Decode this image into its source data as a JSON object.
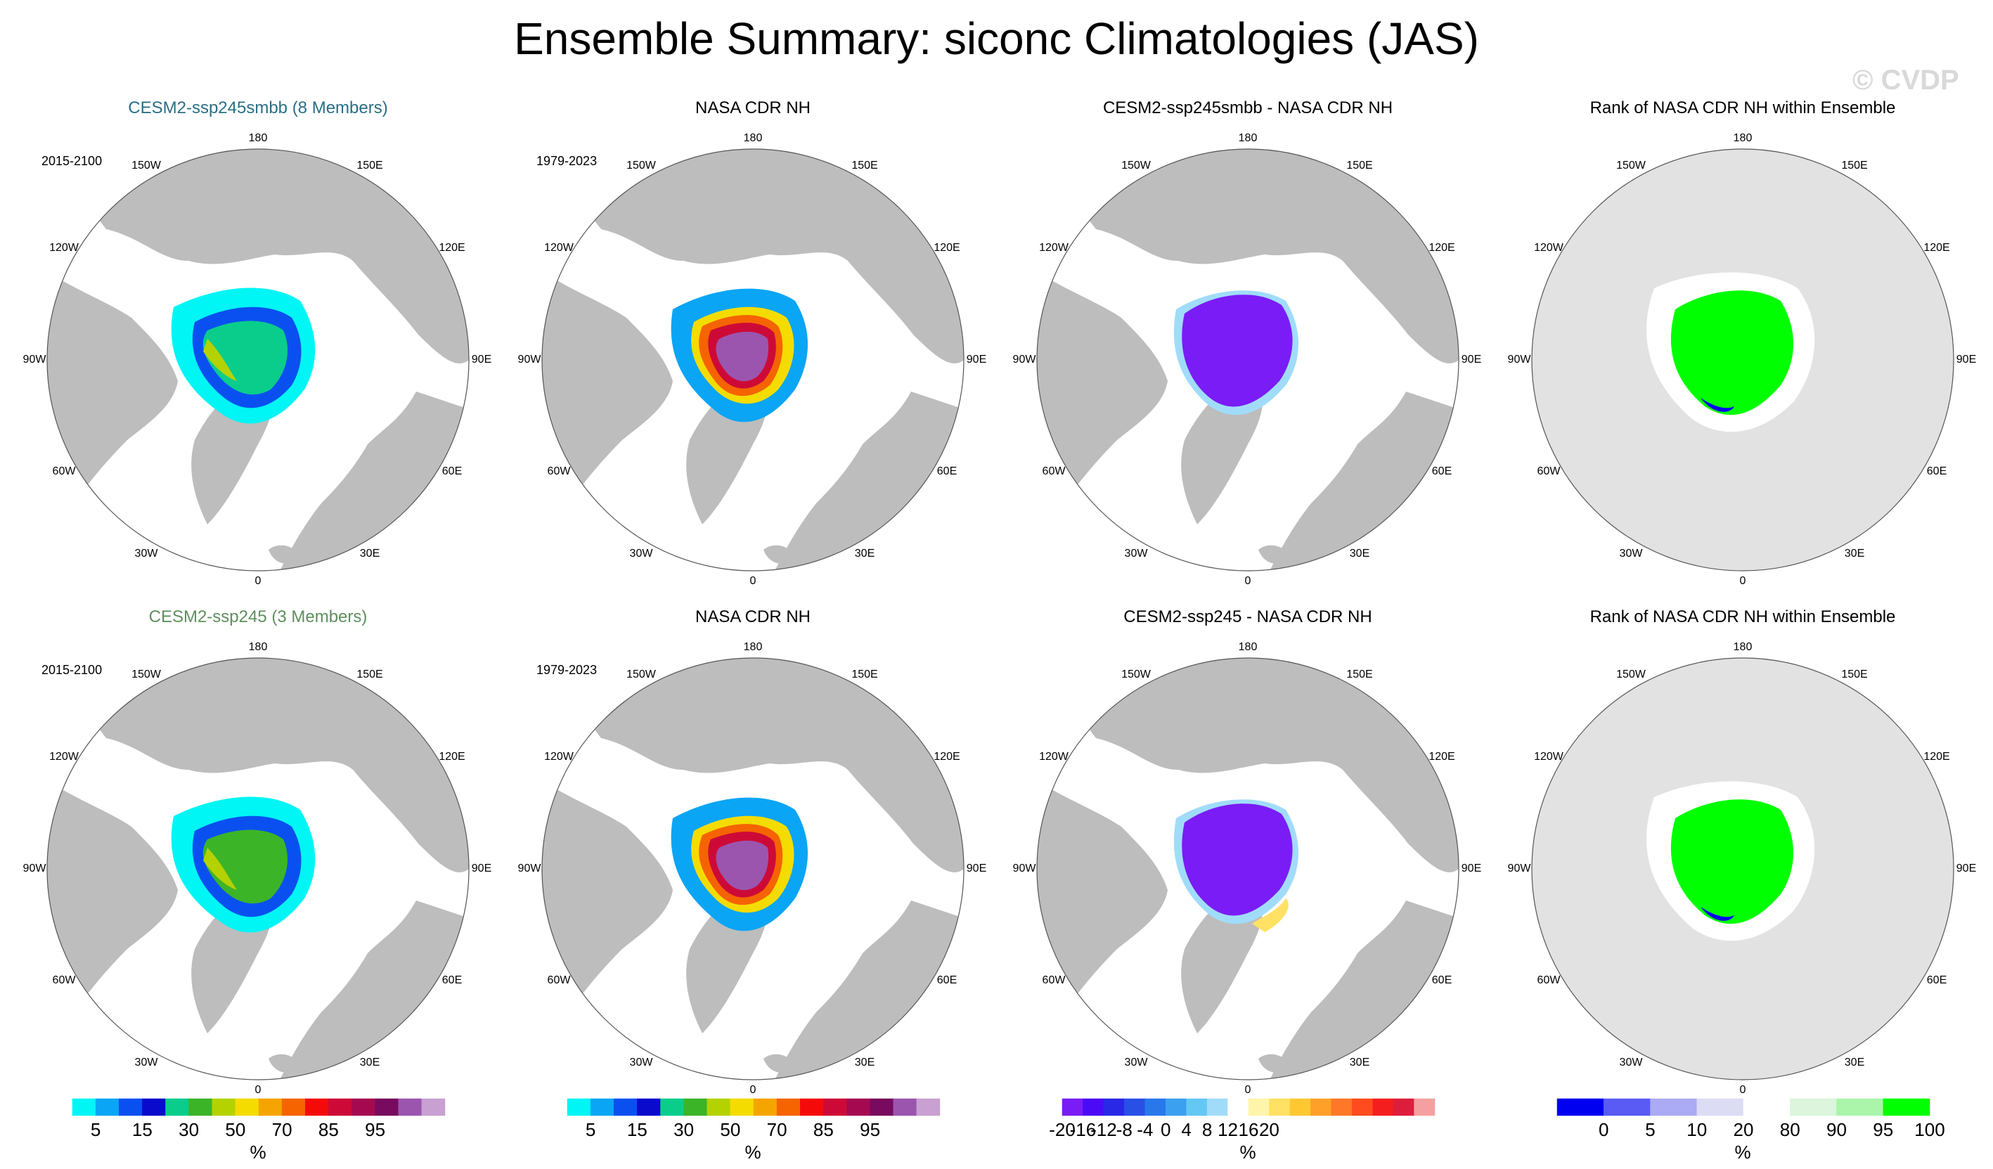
{
  "title": "Ensemble Summary: siconc Climatologies (JAS)",
  "watermark": "© CVDP",
  "colors": {
    "row1_title": "#2a6f86",
    "row2_title": "#5f8f5f",
    "land": "#bdbdbd",
    "rank_land": "#e2e2e2",
    "diff_purple": "#7a1cf5",
    "rank_green": "#00ff00"
  },
  "panels": [
    {
      "title": "CESM2-ssp245smbb (8 Members)",
      "period": "2015-2100",
      "kind": "model",
      "variant": "a"
    },
    {
      "title": "NASA CDR NH",
      "period": "1979-2023",
      "kind": "obs",
      "variant": "a"
    },
    {
      "title": "CESM2-ssp245smbb - NASA CDR NH",
      "period": "",
      "kind": "diff",
      "variant": "a"
    },
    {
      "title": "Rank of NASA CDR NH within Ensemble",
      "period": "",
      "kind": "rank",
      "variant": "a"
    },
    {
      "title": "CESM2-ssp245 (3 Members)",
      "period": "2015-2100",
      "kind": "model",
      "variant": "b"
    },
    {
      "title": "NASA CDR NH",
      "period": "1979-2023",
      "kind": "obs",
      "variant": "b"
    },
    {
      "title": "CESM2-ssp245 - NASA CDR NH",
      "period": "",
      "kind": "diff",
      "variant": "b"
    },
    {
      "title": "Rank of NASA CDR NH within Ensemble",
      "period": "",
      "kind": "rank",
      "variant": "b"
    }
  ],
  "lon_labels": [
    "180",
    "150E",
    "120E",
    "90E",
    "60E",
    "30E",
    "0",
    "30W",
    "60W",
    "90W",
    "120W",
    "150W"
  ],
  "colorbars": [
    {
      "name": "concentration",
      "unit": "%",
      "colors": [
        "#00f5f5",
        "#0aa5f5",
        "#0a50f0",
        "#0a0acd",
        "#0acd8c",
        "#3cb428",
        "#b4d200",
        "#f5dc00",
        "#f5a500",
        "#f56400",
        "#f50a0a",
        "#cd0a37",
        "#a50a50",
        "#780a5f",
        "#9b55af",
        "#c8a0d2"
      ],
      "ticks": [
        {
          "label": "5",
          "boundary": 1
        },
        {
          "label": "15",
          "boundary": 3
        },
        {
          "label": "30",
          "boundary": 5
        },
        {
          "label": "50",
          "boundary": 7
        },
        {
          "label": "70",
          "boundary": 9
        },
        {
          "label": "85",
          "boundary": 11
        },
        {
          "label": "95",
          "boundary": 13
        }
      ]
    },
    {
      "name": "difference",
      "unit": "%",
      "colors": [
        "#7a1cf5",
        "#4b0af5",
        "#2828e6",
        "#2850e6",
        "#2878eb",
        "#3ca0f0",
        "#64c8f5",
        "#a0dcfa",
        "#ffffff",
        "#fff5aa",
        "#ffe164",
        "#ffc832",
        "#ffa028",
        "#ff7828",
        "#ff4b1e",
        "#f51e1e",
        "#dc1e3c",
        "#f5a0a0"
      ],
      "ticks": [
        {
          "label": "-20",
          "boundary": 0
        },
        {
          "label": "-16",
          "boundary": 1
        },
        {
          "label": "-12",
          "boundary": 2
        },
        {
          "label": "-8",
          "boundary": 3
        },
        {
          "label": "-4",
          "boundary": 4
        },
        {
          "label": "0",
          "boundary": 5
        },
        {
          "label": "4",
          "boundary": 6
        },
        {
          "label": "8",
          "boundary": 7
        },
        {
          "label": "12",
          "boundary": 8
        },
        {
          "label": "16",
          "boundary": 9
        },
        {
          "label": "20",
          "boundary": 10
        }
      ]
    },
    {
      "name": "rank",
      "unit": "%",
      "colors": [
        "#0000f0",
        "#5a5af5",
        "#aaaaf5",
        "#dcdcf5",
        "#ffffff",
        "#dcf5dc",
        "#aaf5aa",
        "#00ff00"
      ],
      "ticks": [
        {
          "label": "0",
          "boundary": 1
        },
        {
          "label": "5",
          "boundary": 2
        },
        {
          "label": "10",
          "boundary": 3
        },
        {
          "label": "20",
          "boundary": 4
        },
        {
          "label": "80",
          "boundary": 5
        },
        {
          "label": "90",
          "boundary": 6
        },
        {
          "label": "95",
          "boundary": 7
        },
        {
          "label": "100",
          "boundary": 8
        }
      ]
    }
  ]
}
